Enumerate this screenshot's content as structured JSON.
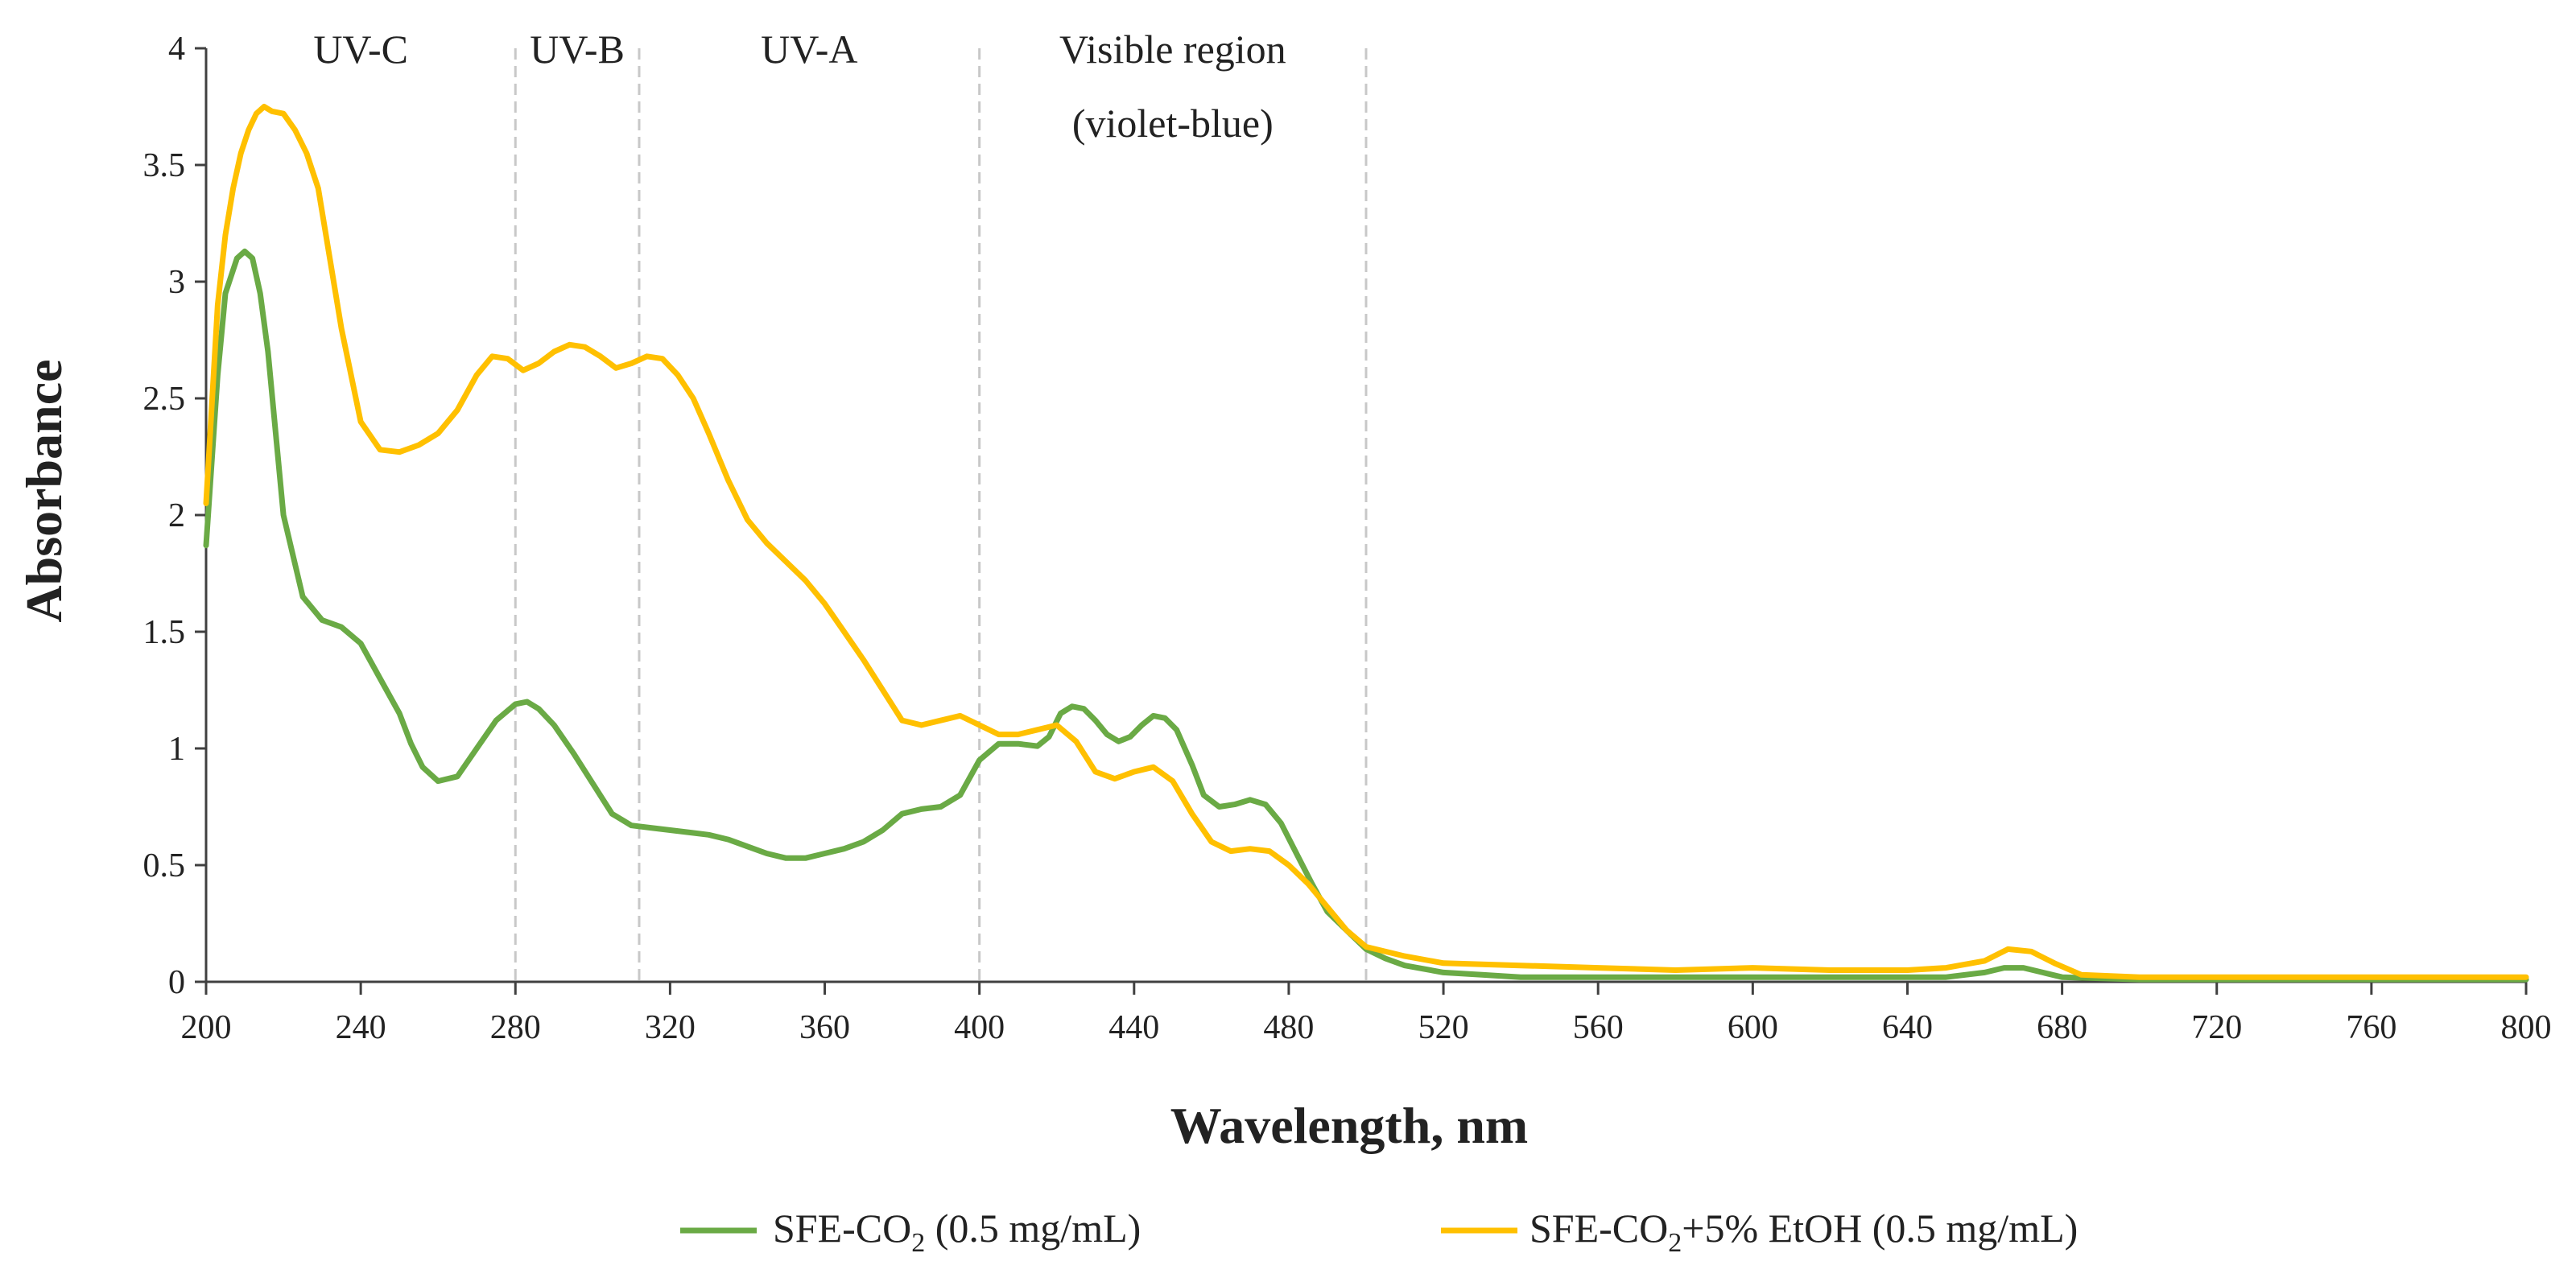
{
  "chart_data": {
    "type": "line",
    "title": "",
    "xlabel": "Wavelength, nm",
    "ylabel": "Absorbance",
    "xlim": [
      200,
      800
    ],
    "ylim": [
      0,
      4
    ],
    "x_ticks": [
      200,
      240,
      280,
      320,
      360,
      400,
      440,
      480,
      520,
      560,
      600,
      640,
      680,
      720,
      760,
      800
    ],
    "y_ticks": [
      0,
      0.5,
      1,
      1.5,
      2,
      2.5,
      3,
      3.5,
      4
    ],
    "y_tick_labels": [
      "0",
      "0.5",
      "1",
      "1.5",
      "2",
      "2.5",
      "3",
      "3.5",
      "4"
    ],
    "region_lines": [
      280,
      312,
      400,
      500
    ],
    "regions": [
      {
        "label": "UV-C",
        "x": 240
      },
      {
        "label": "UV-B",
        "x": 296
      },
      {
        "label": "UV-A",
        "x": 356
      },
      {
        "label": "Visible region",
        "x": 450
      },
      {
        "label": "(violet-blue)",
        "x": 450
      }
    ],
    "series": [
      {
        "name": "SFE-CO2 (0.5 mg/mL)",
        "legend_main": "SFE-CO",
        "legend_sub": "2",
        "legend_tail": " (0.5 mg/mL)",
        "color": "#6aaa45",
        "x": [
          200,
          203,
          205,
          207,
          208,
          210,
          212,
          214,
          216,
          220,
          225,
          230,
          235,
          240,
          245,
          250,
          253,
          256,
          260,
          265,
          270,
          275,
          280,
          283,
          286,
          290,
          295,
          300,
          305,
          310,
          315,
          320,
          325,
          330,
          335,
          340,
          345,
          350,
          355,
          360,
          365,
          370,
          375,
          380,
          385,
          390,
          395,
          400,
          405,
          410,
          415,
          418,
          421,
          424,
          427,
          430,
          433,
          436,
          439,
          442,
          445,
          448,
          451,
          455,
          458,
          462,
          466,
          470,
          474,
          478,
          482,
          486,
          490,
          495,
          500,
          505,
          510,
          520,
          530,
          540,
          560,
          600,
          640,
          650,
          660,
          665,
          670,
          675,
          680,
          700,
          740,
          800
        ],
        "y": [
          1.87,
          2.6,
          2.95,
          3.05,
          3.1,
          3.13,
          3.1,
          2.95,
          2.7,
          2.0,
          1.65,
          1.55,
          1.52,
          1.45,
          1.3,
          1.15,
          1.02,
          0.92,
          0.86,
          0.88,
          1.0,
          1.12,
          1.19,
          1.2,
          1.17,
          1.1,
          0.98,
          0.85,
          0.72,
          0.67,
          0.66,
          0.65,
          0.64,
          0.63,
          0.61,
          0.58,
          0.55,
          0.53,
          0.53,
          0.55,
          0.57,
          0.6,
          0.65,
          0.72,
          0.74,
          0.75,
          0.8,
          0.95,
          1.02,
          1.02,
          1.01,
          1.05,
          1.15,
          1.18,
          1.17,
          1.12,
          1.06,
          1.03,
          1.05,
          1.1,
          1.14,
          1.13,
          1.08,
          0.93,
          0.8,
          0.75,
          0.76,
          0.78,
          0.76,
          0.68,
          0.55,
          0.42,
          0.3,
          0.22,
          0.14,
          0.1,
          0.07,
          0.04,
          0.03,
          0.02,
          0.02,
          0.02,
          0.02,
          0.02,
          0.04,
          0.06,
          0.06,
          0.04,
          0.02,
          0.01,
          0.01,
          0.01
        ]
      },
      {
        "name": "SFE-CO2+5% EtOH (0.5 mg/mL)",
        "legend_main": "SFE-CO",
        "legend_sub": "2",
        "legend_tail": "+5% EtOH (0.5 mg/mL)",
        "color": "#ffc000",
        "x": [
          200,
          203,
          205,
          207,
          209,
          211,
          213,
          215,
          217,
          220,
          223,
          226,
          229,
          232,
          235,
          240,
          245,
          250,
          255,
          260,
          265,
          270,
          274,
          278,
          282,
          286,
          290,
          294,
          298,
          302,
          306,
          310,
          314,
          318,
          322,
          326,
          330,
          335,
          340,
          345,
          350,
          355,
          360,
          365,
          370,
          375,
          380,
          385,
          390,
          395,
          400,
          405,
          410,
          415,
          420,
          425,
          430,
          435,
          440,
          445,
          450,
          455,
          460,
          465,
          470,
          475,
          480,
          485,
          490,
          495,
          500,
          510,
          520,
          540,
          560,
          580,
          600,
          620,
          640,
          650,
          660,
          666,
          672,
          678,
          685,
          700,
          750,
          800
        ],
        "y": [
          2.05,
          2.9,
          3.2,
          3.4,
          3.55,
          3.65,
          3.72,
          3.75,
          3.73,
          3.72,
          3.65,
          3.55,
          3.4,
          3.1,
          2.8,
          2.4,
          2.28,
          2.27,
          2.3,
          2.35,
          2.45,
          2.6,
          2.68,
          2.67,
          2.62,
          2.65,
          2.7,
          2.73,
          2.72,
          2.68,
          2.63,
          2.65,
          2.68,
          2.67,
          2.6,
          2.5,
          2.35,
          2.15,
          1.98,
          1.88,
          1.8,
          1.72,
          1.62,
          1.5,
          1.38,
          1.25,
          1.12,
          1.1,
          1.12,
          1.14,
          1.1,
          1.06,
          1.06,
          1.08,
          1.1,
          1.03,
          0.9,
          0.87,
          0.9,
          0.92,
          0.86,
          0.72,
          0.6,
          0.56,
          0.57,
          0.56,
          0.5,
          0.42,
          0.32,
          0.22,
          0.15,
          0.11,
          0.08,
          0.07,
          0.06,
          0.05,
          0.06,
          0.05,
          0.05,
          0.06,
          0.09,
          0.14,
          0.13,
          0.08,
          0.03,
          0.02,
          0.02,
          0.02
        ]
      }
    ]
  }
}
